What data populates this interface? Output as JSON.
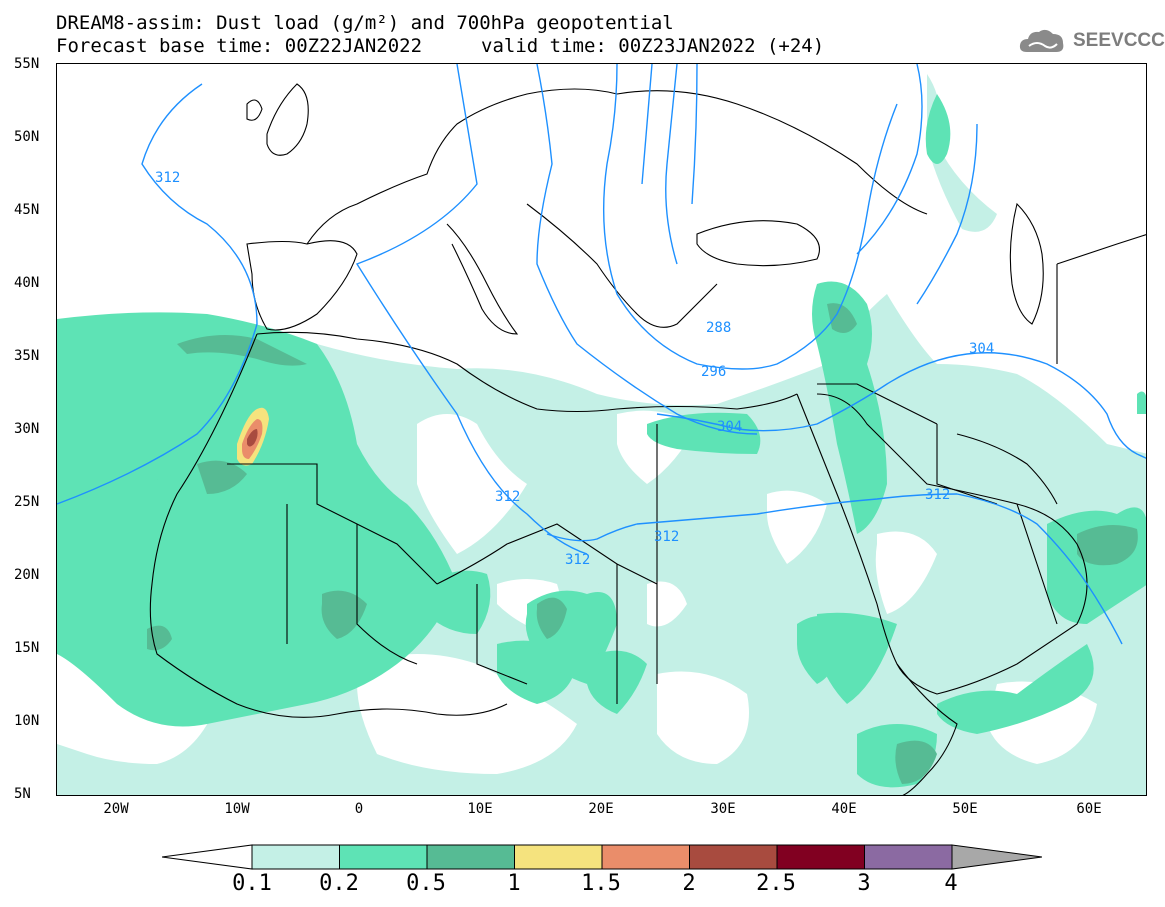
{
  "title": {
    "line1": "DREAM8-assim: Dust load (g/m²) and 700hPa geopotential",
    "base_time": "Forecast base time: 00Z22JAN2022",
    "valid_time": "valid time: 00Z23JAN2022 (+24)"
  },
  "logo": {
    "text": "SEEVCCC",
    "icon": "cloud-icon"
  },
  "axes": {
    "lat_labels": [
      "55N",
      "50N",
      "45N",
      "40N",
      "35N",
      "30N",
      "25N",
      "20N",
      "15N",
      "10N",
      "5N"
    ],
    "lon_labels": [
      "20W",
      "10W",
      "0",
      "10E",
      "20E",
      "30E",
      "40E",
      "50E",
      "60E"
    ]
  },
  "contours": {
    "color": "#1e90ff",
    "labels": [
      "312",
      "288",
      "296",
      "304",
      "304",
      "312",
      "312",
      "312",
      "312"
    ]
  },
  "colorbar": {
    "labels": [
      "0.1",
      "0.2",
      "0.5",
      "1",
      "1.5",
      "2",
      "2.5",
      "3",
      "4"
    ],
    "colors": [
      "#c4f0e6",
      "#5ee3b5",
      "#56bb94",
      "#f5e37e",
      "#ea8d6a",
      "#a84b3f",
      "#810021",
      "#8b6aa2",
      "#a8a8a8"
    ]
  },
  "chart_data": {
    "type": "heatmap",
    "variable": "Dust load (g/m²)",
    "overlay": "700hPa geopotential contours",
    "lat_range": [
      "5N",
      "55N"
    ],
    "lon_range": [
      "25W",
      "65E"
    ],
    "levels": [
      0.1,
      0.2,
      0.5,
      1,
      1.5,
      2,
      2.5,
      3,
      4
    ],
    "contour_values": [
      288,
      296,
      304,
      312
    ]
  }
}
